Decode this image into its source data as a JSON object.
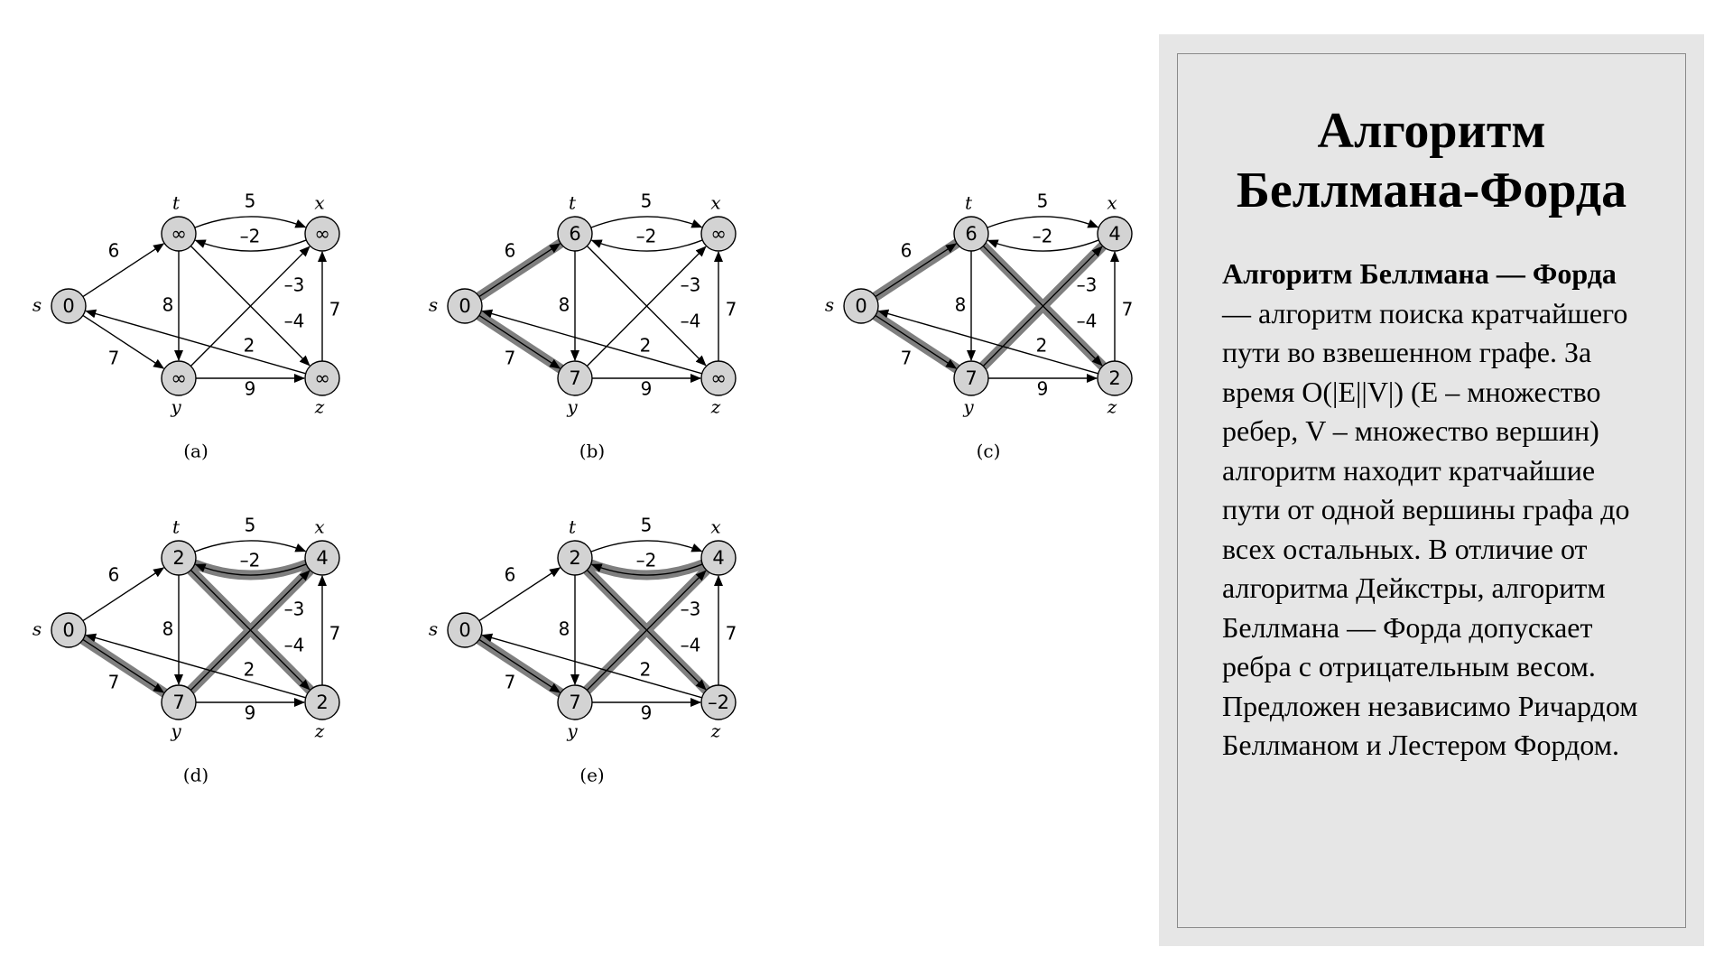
{
  "panel": {
    "title_line1": "Алгоритм",
    "title_line2": "Беллмана-Форда",
    "text_bold": "Алгоритм Беллмана — Форда",
    "text_rest": " — алгоритм поиска кратчайшего пути во взвешенном графе. За время O(|E||V|) (E – множество ребер, V – множество вершин) алгоритм находит кратчайшие пути от одной вершины графа до всех остальных. В отличие от алгоритма Дейкстры, алгоритм Беллмана — Форда допускает ребра с отрицательным весом. Предложен независимо Ричардом Беллманом и Лестером Фордом."
  },
  "graph": {
    "vertices": [
      "s",
      "t",
      "x",
      "y",
      "z"
    ],
    "edges": [
      {
        "id": "st",
        "from": "s",
        "to": "t",
        "weight": "6"
      },
      {
        "id": "sy",
        "from": "s",
        "to": "y",
        "weight": "7"
      },
      {
        "id": "tx",
        "from": "t",
        "to": "x",
        "weight": "5"
      },
      {
        "id": "xt",
        "from": "x",
        "to": "t",
        "weight": "–2"
      },
      {
        "id": "ty",
        "from": "t",
        "to": "y",
        "weight": "8"
      },
      {
        "id": "tz",
        "from": "t",
        "to": "z",
        "weight": "–4"
      },
      {
        "id": "yx",
        "from": "y",
        "to": "x",
        "weight": "–3"
      },
      {
        "id": "yz",
        "from": "y",
        "to": "z",
        "weight": "9"
      },
      {
        "id": "zx",
        "from": "z",
        "to": "x",
        "weight": "7"
      },
      {
        "id": "zs",
        "from": "z",
        "to": "s",
        "weight": "2"
      }
    ],
    "states": [
      {
        "caption": "(a)",
        "distances": {
          "s": "0",
          "t": "∞",
          "x": "∞",
          "y": "∞",
          "z": "∞"
        },
        "highlighted": []
      },
      {
        "caption": "(b)",
        "distances": {
          "s": "0",
          "t": "6",
          "x": "∞",
          "y": "7",
          "z": "∞"
        },
        "highlighted": [
          "st",
          "sy"
        ]
      },
      {
        "caption": "(c)",
        "distances": {
          "s": "0",
          "t": "6",
          "x": "4",
          "y": "7",
          "z": "2"
        },
        "highlighted": [
          "st",
          "sy",
          "yx",
          "tz"
        ]
      },
      {
        "caption": "(d)",
        "distances": {
          "s": "0",
          "t": "2",
          "x": "4",
          "y": "7",
          "z": "2"
        },
        "highlighted": [
          "sy",
          "yx",
          "xt",
          "tz"
        ]
      },
      {
        "caption": "(e)",
        "distances": {
          "s": "0",
          "t": "2",
          "x": "4",
          "y": "7",
          "z": "–2"
        },
        "highlighted": [
          "sy",
          "yx",
          "xt",
          "tz"
        ]
      }
    ]
  },
  "colors": {
    "vertex_fill": "#d3d3d3",
    "highlight": "#7f7f7f",
    "panel_background": "#e6e6e6"
  }
}
